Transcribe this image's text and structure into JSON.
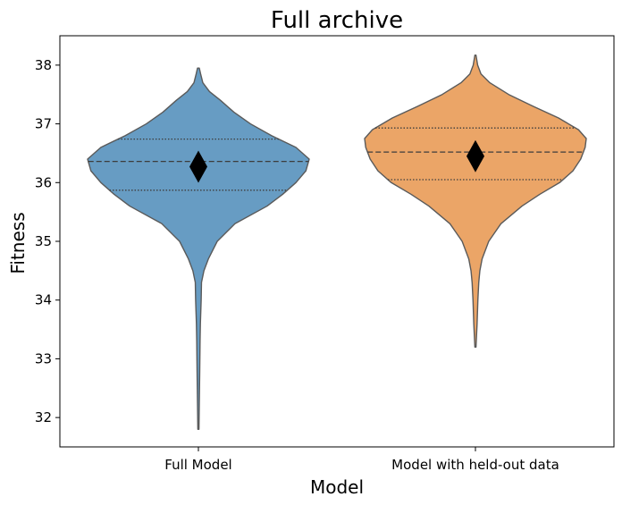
{
  "chart_data": {
    "type": "violin",
    "title": "Full archive",
    "xlabel": "Model",
    "ylabel": "Fitness",
    "ylim": [
      31.5,
      38.5
    ],
    "yticks": [
      32,
      33,
      34,
      35,
      36,
      37,
      38
    ],
    "categories": [
      "Full Model",
      "Model with held-out data"
    ],
    "grid": false,
    "series": [
      {
        "category": "Full Model",
        "color": "#5f97c0",
        "min": 31.8,
        "max": 37.95,
        "quartiles": [
          35.87,
          36.36,
          36.74
        ],
        "mean": 36.27,
        "profile": [
          [
            31.8,
            0.005
          ],
          [
            32.8,
            0.012
          ],
          [
            33.3,
            0.015
          ],
          [
            33.6,
            0.018
          ],
          [
            34.0,
            0.025
          ],
          [
            34.3,
            0.028
          ],
          [
            34.5,
            0.05
          ],
          [
            34.7,
            0.09
          ],
          [
            35.0,
            0.17
          ],
          [
            35.3,
            0.33
          ],
          [
            35.6,
            0.62
          ],
          [
            35.8,
            0.76
          ],
          [
            36.0,
            0.88
          ],
          [
            36.2,
            0.97
          ],
          [
            36.4,
            1.0
          ],
          [
            36.6,
            0.88
          ],
          [
            36.8,
            0.66
          ],
          [
            37.0,
            0.47
          ],
          [
            37.2,
            0.32
          ],
          [
            37.4,
            0.2
          ],
          [
            37.55,
            0.1
          ],
          [
            37.7,
            0.04
          ],
          [
            37.85,
            0.02
          ],
          [
            37.95,
            0.008
          ]
        ]
      },
      {
        "category": "Model with held-out data",
        "color": "#eaa05f",
        "min": 33.2,
        "max": 38.17,
        "quartiles": [
          36.05,
          36.52,
          36.93
        ],
        "mean": 36.45,
        "profile": [
          [
            33.2,
            0.005
          ],
          [
            33.6,
            0.015
          ],
          [
            34.0,
            0.022
          ],
          [
            34.3,
            0.03
          ],
          [
            34.5,
            0.04
          ],
          [
            34.7,
            0.06
          ],
          [
            35.0,
            0.12
          ],
          [
            35.3,
            0.23
          ],
          [
            35.6,
            0.42
          ],
          [
            35.8,
            0.58
          ],
          [
            36.0,
            0.76
          ],
          [
            36.2,
            0.88
          ],
          [
            36.4,
            0.95
          ],
          [
            36.6,
            0.99
          ],
          [
            36.75,
            1.0
          ],
          [
            36.9,
            0.93
          ],
          [
            37.1,
            0.75
          ],
          [
            37.3,
            0.52
          ],
          [
            37.5,
            0.3
          ],
          [
            37.7,
            0.13
          ],
          [
            37.85,
            0.05
          ],
          [
            38.0,
            0.02
          ],
          [
            38.17,
            0.005
          ]
        ]
      }
    ]
  }
}
